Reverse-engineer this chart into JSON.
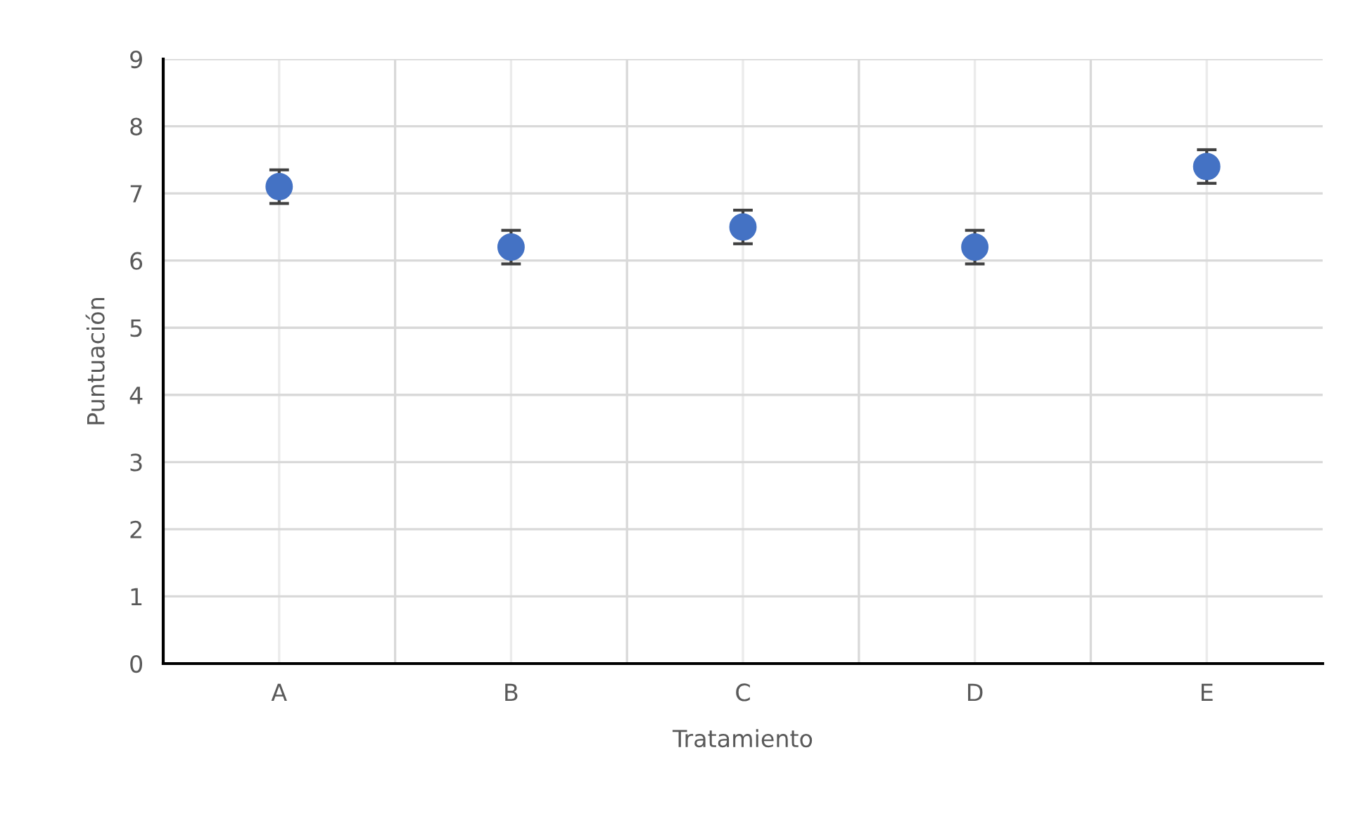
{
  "chart_data": {
    "type": "scatter",
    "xlabel": "Tratamiento",
    "ylabel": "Puntuación",
    "categories": [
      "A",
      "B",
      "C",
      "D",
      "E"
    ],
    "series": [
      {
        "color": "#4472c4",
        "values": [
          7.1,
          6.2,
          6.5,
          6.2,
          7.4
        ],
        "errors": [
          0.25,
          0.25,
          0.25,
          0.25,
          0.25
        ]
      }
    ],
    "ylim": [
      0,
      9
    ],
    "yticks": [
      0,
      1,
      2,
      3,
      4,
      5,
      6,
      7,
      8,
      9
    ],
    "grid": true,
    "marker": "circle",
    "legend": false
  }
}
